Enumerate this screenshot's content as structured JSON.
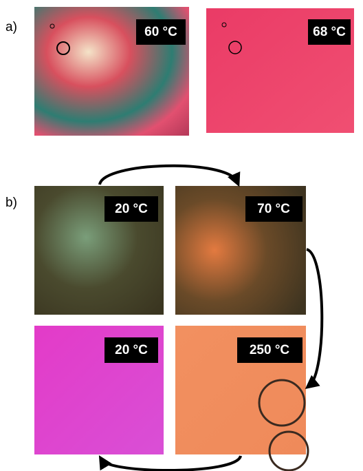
{
  "panel_a": {
    "label": "a)",
    "images": [
      {
        "label": "60 °C"
      },
      {
        "label": "68 °C"
      }
    ]
  },
  "panel_b": {
    "label": "b)",
    "images": [
      {
        "label": "20 °C"
      },
      {
        "label": "70 °C"
      },
      {
        "label": "20 °C"
      },
      {
        "label": "250 °C"
      }
    ]
  }
}
